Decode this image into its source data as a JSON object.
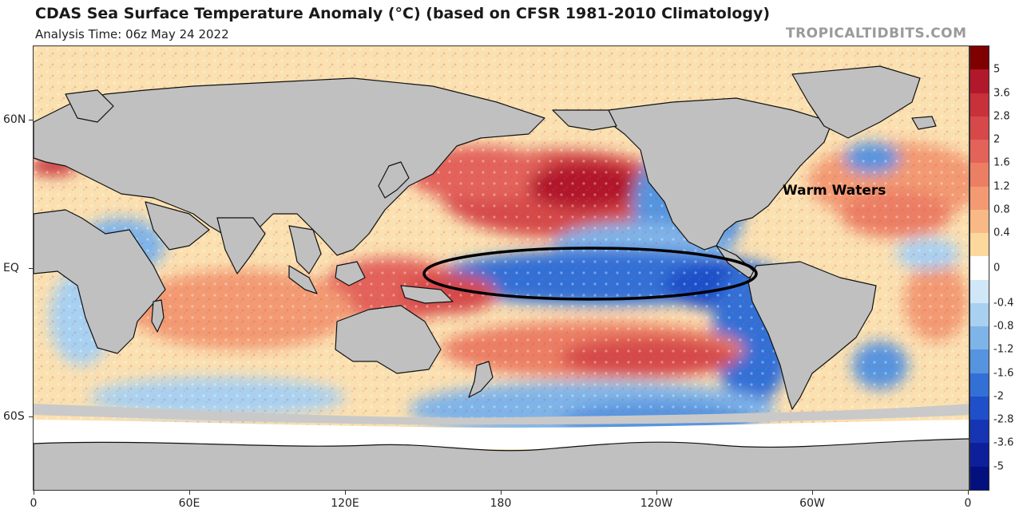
{
  "header": {
    "title": "CDAS Sea Surface Temperature Anomaly (°C) (based on CFSR 1981-2010 Climatology)",
    "subtitle": "Analysis Time: 06z May 24 2022",
    "brand": "TROPICALTIDBITS.COM"
  },
  "map": {
    "annotation": "Warm Waters",
    "lat_labels": [
      "60N",
      "EQ",
      "60S"
    ],
    "lon_labels": [
      "0",
      "60E",
      "120E",
      "180",
      "120W",
      "60W",
      "0"
    ],
    "land_color": "#c0c0c0",
    "ice_color": "#ffffff",
    "coastline_color": "#111111",
    "highlight_ellipse": "La Niña cold tongue outline"
  },
  "colorbar": {
    "labels": [
      "5",
      "3.6",
      "2.8",
      "2",
      "1.6",
      "1.2",
      "0.8",
      "0.4",
      "0",
      "-0.4",
      "-0.8",
      "-1.2",
      "-1.6",
      "-2",
      "-2.8",
      "-3.6",
      "-5"
    ],
    "colors": [
      "#7f0000",
      "#b2182b",
      "#c8303a",
      "#d6484a",
      "#e3625a",
      "#ec7e64",
      "#f39a72",
      "#f8b986",
      "#fcd89c",
      "#ffffff",
      "#cfe7f7",
      "#a8d0f0",
      "#7fb4e8",
      "#5694df",
      "#3370d6",
      "#1f4fc9",
      "#1535b5",
      "#0d1f9a",
      "#05107f"
    ]
  }
}
